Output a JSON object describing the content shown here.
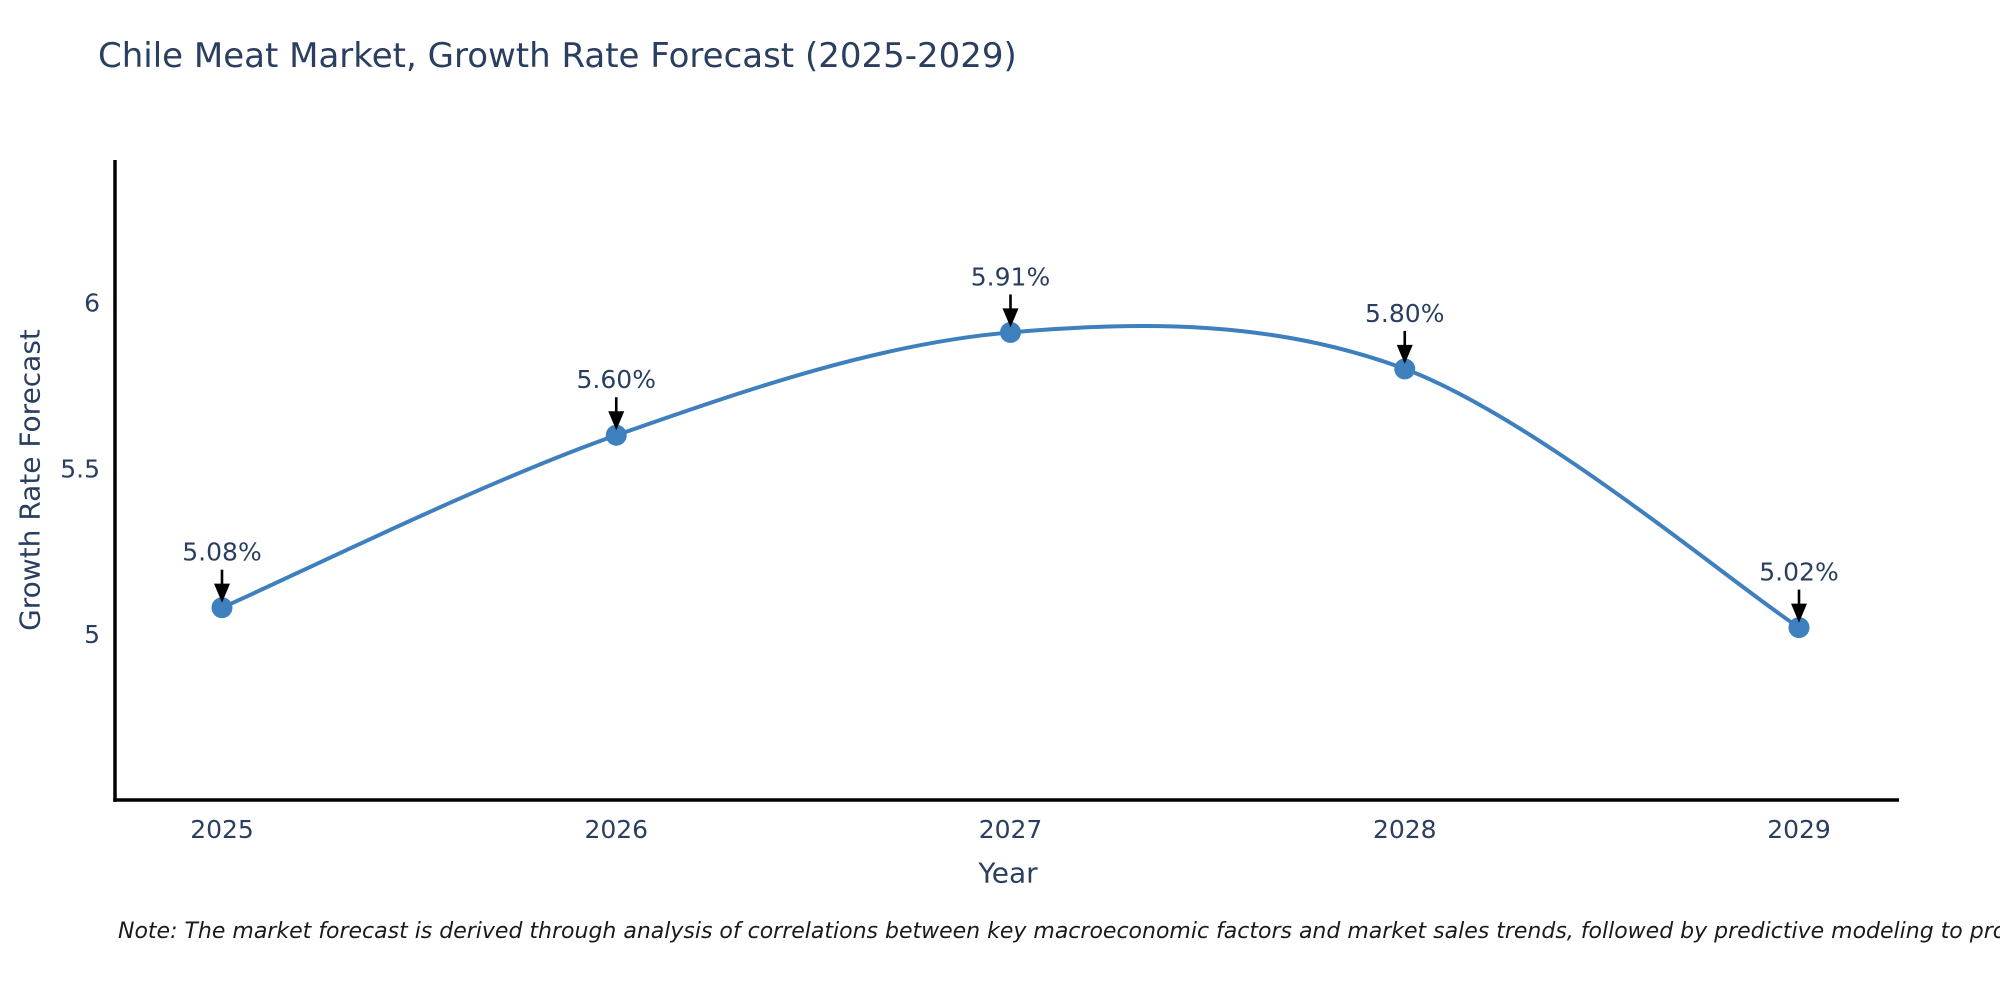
{
  "chart_data": {
    "type": "line",
    "title": "Chile Meat Market, Growth Rate Forecast (2025-2029)",
    "xlabel": "Year",
    "ylabel": "Growth Rate Forecast",
    "x": [
      2025,
      2026,
      2027,
      2028,
      2029
    ],
    "values": [
      5.08,
      5.6,
      5.91,
      5.8,
      5.02
    ],
    "point_labels": [
      "5.08%",
      "5.60%",
      "5.91%",
      "5.80%",
      "5.02%"
    ],
    "x_tick_labels": [
      "2025",
      "2026",
      "2027",
      "2028",
      "2029"
    ],
    "y_ticks": [
      5,
      5.5,
      6
    ],
    "y_tick_labels": [
      "5",
      "5.5",
      "6"
    ],
    "y_range": [
      4.5,
      6.43
    ],
    "line_shape": "spline",
    "grid": false,
    "legend": "none",
    "colors": {
      "line": "#3e7fbd",
      "marker": "#3e7fbd",
      "text": "#2a3f5f",
      "annotation_text": "#2a3f5f",
      "annotation_arrow": "#000000",
      "axis_line": "#000000",
      "background": "#ffffff"
    }
  },
  "footnote": "Note: The market forecast is derived through analysis of correlations between key macroeconomic factors and market sales trends, followed by predictive modeling to project future sales"
}
